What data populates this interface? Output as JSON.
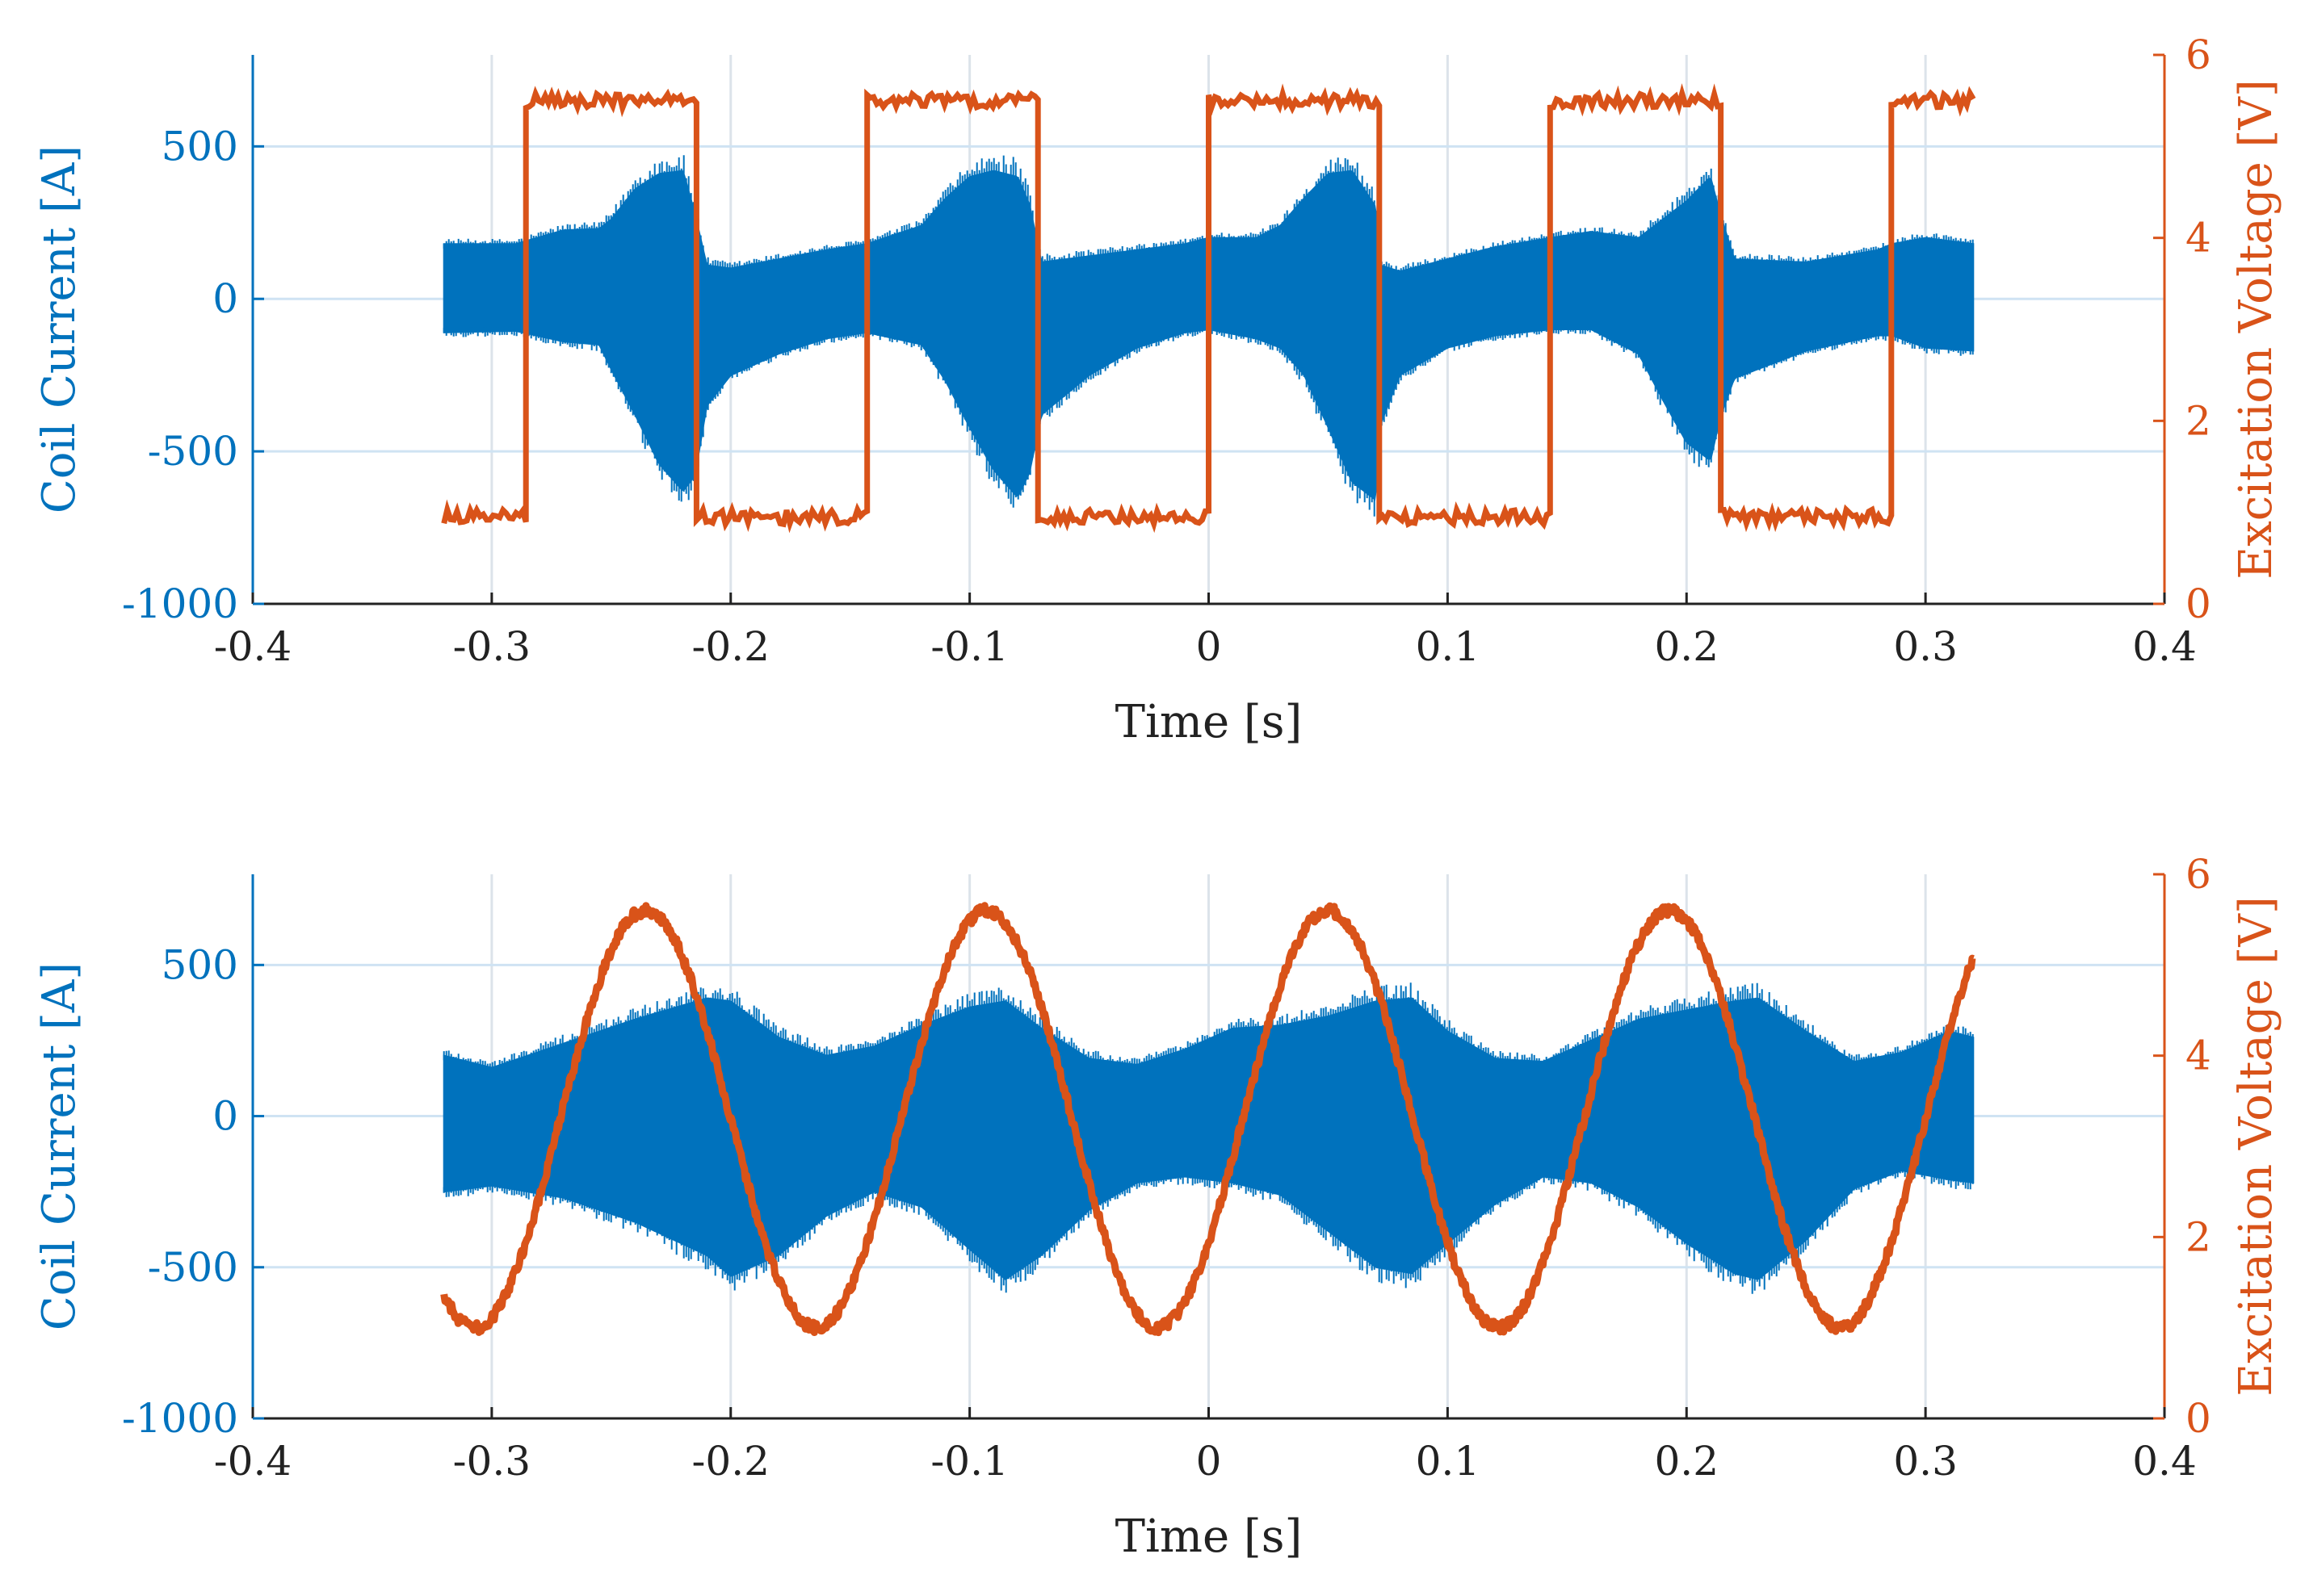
{
  "colors": {
    "current": "#0072BD",
    "voltage": "#D95319",
    "axis": "#222222",
    "grid": "#DCE3EA",
    "hgrid": "#CFE3F3"
  },
  "chart_data": [
    {
      "type": "line",
      "panel": "top",
      "excitation": "square",
      "xlabel": "Time [s]",
      "ylabel_left": "Coil Current [A]",
      "ylabel_right": "Excitation Voltage [V]",
      "xlim": [
        -0.4,
        0.4
      ],
      "ylim_left": [
        -1000,
        800
      ],
      "ylim_right": [
        0,
        6
      ],
      "xticks": [
        -0.4,
        -0.3,
        -0.2,
        -0.1,
        0,
        0.1,
        0.2,
        0.3,
        0.4
      ],
      "xtick_labels": [
        "-0.4",
        "-0.3",
        "-0.2",
        "-0.1",
        "0",
        "0.1",
        "0.2",
        "0.3",
        "0.4"
      ],
      "yticks_left": [
        -1000,
        -500,
        0,
        500
      ],
      "ytick_labels_left": [
        "-1000",
        "-500",
        "0",
        "500"
      ],
      "yticks_right": [
        0,
        2,
        4,
        6
      ],
      "ytick_labels_right": [
        "0",
        "2",
        "4",
        "6"
      ],
      "grid": true,
      "series": [
        {
          "name": "Coil Current",
          "axis": "left",
          "envelope_x": [
            -0.32,
            -0.29,
            -0.27,
            -0.255,
            -0.25,
            -0.24,
            -0.23,
            -0.22,
            -0.215,
            -0.21,
            -0.2,
            -0.18,
            -0.16,
            -0.143,
            -0.12,
            -0.11,
            -0.1,
            -0.09,
            -0.08,
            -0.075,
            -0.07,
            -0.05,
            -0.03,
            -0.01,
            0.0,
            0.02,
            0.03,
            0.04,
            0.05,
            0.06,
            0.07,
            0.072,
            0.08,
            0.1,
            0.12,
            0.143,
            0.16,
            0.18,
            0.19,
            0.2,
            0.21,
            0.214,
            0.22,
            0.25,
            0.28,
            0.286,
            0.3,
            0.32
          ],
          "envelope_upper": [
            180,
            180,
            225,
            230,
            260,
            360,
            410,
            420,
            280,
            110,
            100,
            130,
            160,
            180,
            240,
            330,
            400,
            420,
            400,
            310,
            120,
            140,
            160,
            180,
            200,
            200,
            240,
            330,
            410,
            420,
            300,
            110,
            90,
            130,
            170,
            200,
            220,
            200,
            260,
            320,
            400,
            280,
            130,
            120,
            160,
            180,
            200,
            180
          ],
          "envelope_lower": [
            -110,
            -105,
            -140,
            -150,
            -230,
            -380,
            -540,
            -630,
            -580,
            -350,
            -250,
            -180,
            -130,
            -110,
            -150,
            -270,
            -420,
            -560,
            -650,
            -570,
            -380,
            -250,
            -160,
            -110,
            -100,
            -130,
            -160,
            -250,
            -420,
            -600,
            -660,
            -410,
            -250,
            -160,
            -120,
            -100,
            -100,
            -180,
            -330,
            -470,
            -530,
            -390,
            -260,
            -170,
            -120,
            -120,
            -160,
            -170
          ]
        },
        {
          "name": "Excitation Voltage",
          "axis": "right",
          "waveform": "square",
          "frequency_hz": 7,
          "switch_times": [
            -0.2857,
            -0.2143,
            -0.1429,
            -0.0714,
            0.0,
            0.0714,
            0.1429,
            0.2143,
            0.2857
          ],
          "x_start": -0.32,
          "x_end": 0.32,
          "start_level": 0.95,
          "low": 0.95,
          "high": 5.5
        }
      ]
    },
    {
      "type": "line",
      "panel": "bottom",
      "excitation": "sine",
      "xlabel": "Time [s]",
      "ylabel_left": "Coil Current [A]",
      "ylabel_right": "Excitation Voltage [V]",
      "xlim": [
        -0.4,
        0.4
      ],
      "ylim_left": [
        -1000,
        800
      ],
      "ylim_right": [
        0,
        6
      ],
      "xticks": [
        -0.4,
        -0.3,
        -0.2,
        -0.1,
        0,
        0.1,
        0.2,
        0.3,
        0.4
      ],
      "xtick_labels": [
        "-0.4",
        "-0.3",
        "-0.2",
        "-0.1",
        "0",
        "0.1",
        "0.2",
        "0.3",
        "0.4"
      ],
      "yticks_left": [
        -1000,
        -500,
        0,
        500
      ],
      "ytick_labels_left": [
        "-1000",
        "-500",
        "0",
        "500"
      ],
      "yticks_right": [
        0,
        2,
        4,
        6
      ],
      "ytick_labels_right": [
        "0",
        "2",
        "4",
        "6"
      ],
      "grid": true,
      "series": [
        {
          "name": "Coil Current",
          "axis": "left",
          "envelope_x": [
            -0.32,
            -0.3,
            -0.27,
            -0.24,
            -0.21,
            -0.2,
            -0.18,
            -0.16,
            -0.14,
            -0.12,
            -0.1,
            -0.085,
            -0.07,
            -0.05,
            -0.03,
            -0.01,
            0.01,
            0.03,
            0.05,
            0.07,
            0.085,
            0.1,
            0.12,
            0.14,
            0.16,
            0.18,
            0.2,
            0.22,
            0.23,
            0.25,
            0.27,
            0.29,
            0.31,
            0.32
          ],
          "envelope_upper": [
            200,
            160,
            240,
            320,
            390,
            380,
            260,
            200,
            230,
            300,
            360,
            380,
            290,
            190,
            170,
            220,
            290,
            300,
            330,
            380,
            390,
            280,
            190,
            180,
            250,
            320,
            350,
            380,
            390,
            280,
            180,
            210,
            280,
            260
          ],
          "envelope_lower": [
            -250,
            -230,
            -270,
            -350,
            -460,
            -530,
            -460,
            -330,
            -250,
            -300,
            -440,
            -540,
            -460,
            -310,
            -220,
            -200,
            -220,
            -260,
            -380,
            -500,
            -520,
            -420,
            -290,
            -200,
            -220,
            -300,
            -420,
            -520,
            -540,
            -410,
            -240,
            -180,
            -210,
            -220
          ]
        },
        {
          "name": "Excitation Voltage",
          "axis": "right",
          "waveform": "sine",
          "frequency_hz": 7,
          "offset": 3.3,
          "amplitude": 2.3,
          "phase_peak_time": -0.2357,
          "x_start": -0.32,
          "x_end": 0.32
        }
      ]
    }
  ]
}
